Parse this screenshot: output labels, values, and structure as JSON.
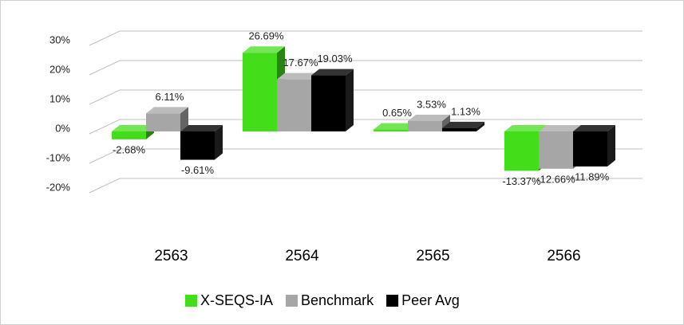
{
  "chart_data": {
    "type": "bar3d",
    "categories": [
      "2563",
      "2564",
      "2565",
      "2566"
    ],
    "series": [
      {
        "name": "X-SEQS-IA",
        "color": "#44dd1a",
        "values": [
          -2.68,
          26.69,
          0.65,
          -13.37
        ],
        "value_labels": [
          "-2.68%",
          "26.69%",
          "0.65%",
          "-13.37%"
        ]
      },
      {
        "name": "Benchmark",
        "color": "#a6a6a6",
        "values": [
          6.11,
          17.67,
          3.53,
          -12.66
        ],
        "value_labels": [
          "6.11%",
          "17.67%",
          "3.53%",
          "-12.66%"
        ]
      },
      {
        "name": "Peer Avg",
        "color": "#000000",
        "values": [
          -9.61,
          19.03,
          1.13,
          -11.89
        ],
        "value_labels": [
          "-9.61%",
          "19.03%",
          "1.13%",
          "-11.89%"
        ]
      }
    ],
    "ylim": [
      -20,
      30
    ],
    "yticks": [
      {
        "value": -20,
        "label": "-20%"
      },
      {
        "value": -10,
        "label": "-10%"
      },
      {
        "value": 0,
        "label": "0%"
      },
      {
        "value": 10,
        "label": "10%"
      },
      {
        "value": 20,
        "label": "20%"
      },
      {
        "value": 30,
        "label": "30%"
      }
    ],
    "grid": true,
    "legend": "bottom"
  }
}
